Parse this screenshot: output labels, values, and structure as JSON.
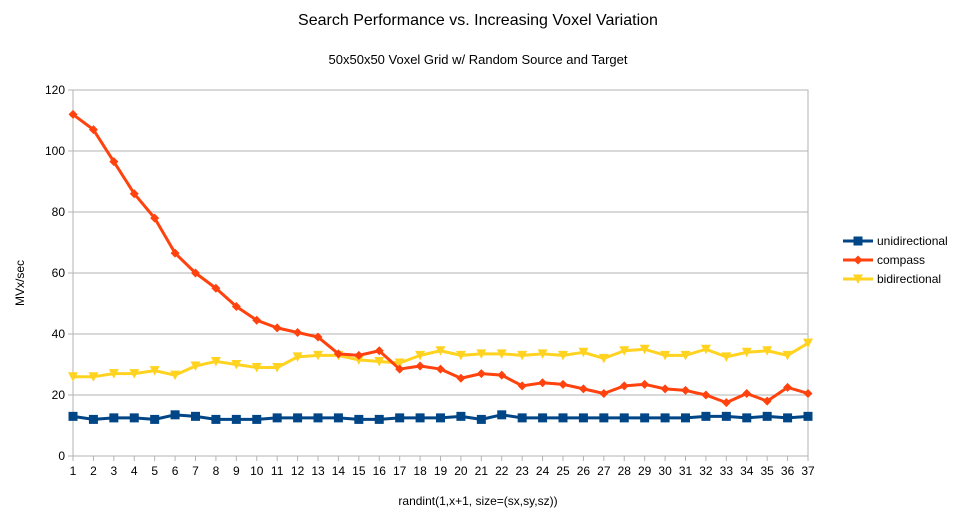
{
  "chart_data": {
    "type": "line",
    "title": "Search Performance vs. Increasing Voxel Variation",
    "subtitle": "50x50x50 Voxel Grid w/ Random Source and Target",
    "xlabel": "randint(1,x+1, size=(sx,sy,sz))",
    "ylabel": "MVx/sec",
    "ylim": [
      0,
      120
    ],
    "yticks": [
      0,
      20,
      40,
      60,
      80,
      100,
      120
    ],
    "grid": true,
    "legend_position": "right",
    "x": [
      1,
      2,
      3,
      4,
      5,
      6,
      7,
      8,
      9,
      10,
      11,
      12,
      13,
      14,
      15,
      16,
      17,
      18,
      19,
      20,
      21,
      22,
      23,
      24,
      25,
      26,
      27,
      28,
      29,
      30,
      31,
      32,
      33,
      34,
      35,
      36,
      37
    ],
    "series": [
      {
        "name": "unidirectional",
        "color": "#004586",
        "marker": "square",
        "values": [
          13,
          12,
          12.5,
          12.5,
          12,
          13.5,
          13,
          12,
          12,
          12,
          12.5,
          12.5,
          12.5,
          12.5,
          12,
          12,
          12.5,
          12.5,
          12.5,
          13,
          12,
          13.5,
          12.5,
          12.5,
          12.5,
          12.5,
          12.5,
          12.5,
          12.5,
          12.5,
          12.5,
          13,
          13,
          12.5,
          13,
          12.5,
          13
        ]
      },
      {
        "name": "compass",
        "color": "#ff420e",
        "marker": "diamond",
        "values": [
          112,
          107,
          96.5,
          86,
          78,
          66.5,
          60,
          55,
          49,
          44.5,
          42,
          40.5,
          39,
          33.5,
          33,
          34.5,
          28.5,
          29.5,
          28.5,
          25.5,
          27,
          26.5,
          23,
          24,
          23.5,
          22,
          20.5,
          23,
          23.5,
          22,
          21.5,
          20,
          17.5,
          20.5,
          18,
          22.5,
          20.5
        ]
      },
      {
        "name": "bidirectional",
        "color": "#ffd320",
        "marker": "triangle-down",
        "values": [
          26,
          26,
          27,
          27,
          28,
          26.5,
          29.5,
          31,
          30,
          29,
          29,
          32.5,
          33,
          33,
          31.5,
          31,
          30.5,
          33,
          34.5,
          33,
          33.5,
          33.5,
          33,
          33.5,
          33,
          34,
          32,
          34.5,
          35,
          33,
          33,
          35,
          32.5,
          34,
          34.5,
          33,
          37
        ]
      }
    ]
  }
}
